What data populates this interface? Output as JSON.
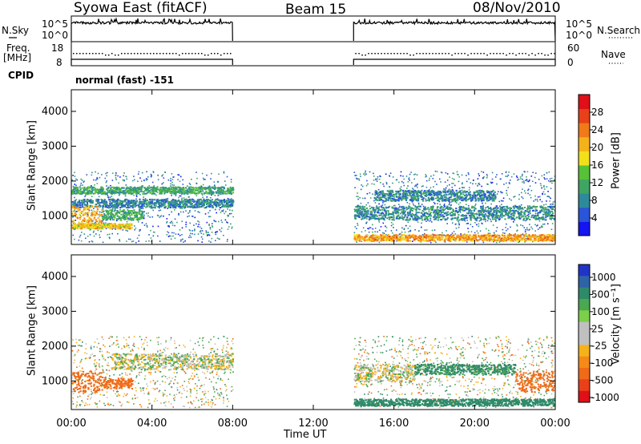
{
  "header": {
    "title": "Syowa East (fitACF)",
    "beam": "Beam 15",
    "date": "08/Nov/2010"
  },
  "strip_labels": {
    "nsky": "N.Sky",
    "freq_line1": "Freq.",
    "freq_line2": "[MHz]",
    "cpid": "CPID",
    "nsearch": "N.Search",
    "nave": "Nave",
    "cpid_value": "normal (fast) -151",
    "noise_ticks": [
      "10^5",
      "10^0"
    ],
    "freq_ticks": [
      "18",
      "8"
    ],
    "nave_ticks": [
      "60",
      "0"
    ]
  },
  "chart_data": [
    {
      "type": "heatmap",
      "title": "",
      "quantity": "Power [dB]",
      "xlabel": "Time UT",
      "ylabel": "Slant Range [km]",
      "xlim": [
        "00:00",
        "24:00"
      ],
      "ylim": [
        180,
        4620
      ],
      "x_ticks": [
        "00:00",
        "04:00",
        "08:00",
        "12:00",
        "16:00",
        "20:00",
        "00:00"
      ],
      "y_ticks": [
        1000,
        2000,
        3000,
        4000
      ],
      "colorbar": {
        "label": "Power [dB]",
        "range": [
          0,
          32
        ],
        "ticks": [
          4,
          8,
          12,
          16,
          20,
          24,
          28
        ],
        "colors": [
          "#1515f0",
          "#2a55d8",
          "#2d8a9a",
          "#3fa562",
          "#57c238",
          "#f2e11a",
          "#f5b21a",
          "#f07a18",
          "#e8411a",
          "#e01018"
        ]
      },
      "data_gap": {
        "start": "08:00",
        "end": "14:00"
      },
      "echo_bands": [
        {
          "t": [
            "00:00",
            "08:00"
          ],
          "range_km": [
            1650,
            1850
          ],
          "level_db": 11
        },
        {
          "t": [
            "00:00",
            "08:00"
          ],
          "range_km": [
            1250,
            1500
          ],
          "level_db": 8
        },
        {
          "t": [
            "00:00",
            "01:30"
          ],
          "range_km": [
            700,
            1300
          ],
          "level_db": 21
        },
        {
          "t": [
            "01:30",
            "03:30"
          ],
          "range_km": [
            900,
            1200
          ],
          "level_db": 12
        },
        {
          "t": [
            "00:00",
            "03:00"
          ],
          "range_km": [
            650,
            800
          ],
          "level_db": 19
        },
        {
          "t": [
            "14:00",
            "24:00"
          ],
          "range_km": [
            300,
            480
          ],
          "level_db": 22
        },
        {
          "t": [
            "14:00",
            "24:00"
          ],
          "range_km": [
            900,
            1300
          ],
          "level_db": 9
        },
        {
          "t": [
            "15:00",
            "21:00"
          ],
          "range_km": [
            1450,
            1750
          ],
          "level_db": 8
        }
      ]
    },
    {
      "type": "heatmap",
      "title": "",
      "quantity": "Velocity [m s-1]",
      "xlabel": "Time UT",
      "ylabel": "Slant Range [km]",
      "xlim": [
        "00:00",
        "24:00"
      ],
      "ylim": [
        180,
        4620
      ],
      "x_ticks": [
        "00:00",
        "04:00",
        "08:00",
        "12:00",
        "16:00",
        "20:00",
        "00:00"
      ],
      "y_ticks": [
        1000,
        2000,
        3000,
        4000
      ],
      "colorbar": {
        "label": "Velocity [m s⁻¹]",
        "ticks": [
          "1000",
          "500",
          "100",
          "25",
          "-25",
          "-100",
          "-500",
          "-1000"
        ],
        "colors": [
          "#2035c8",
          "#2f63a8",
          "#2f8a6a",
          "#4aa850",
          "#7ccf4a",
          "#c0c0c0",
          "#c0c0c0",
          "#f5b21a",
          "#f58a18",
          "#f06a18",
          "#e8411a",
          "#e01018"
        ]
      },
      "data_gap": {
        "start": "08:00",
        "end": "14:00"
      },
      "echo_bands": [
        {
          "t": [
            "00:00",
            "01:30"
          ],
          "range_km": [
            700,
            1300
          ],
          "vel": -400
        },
        {
          "t": [
            "01:30",
            "03:00"
          ],
          "range_km": [
            800,
            1100
          ],
          "vel": -300
        },
        {
          "t": [
            "02:00",
            "08:00"
          ],
          "range_km": [
            1350,
            1800
          ],
          "vel": 0
        },
        {
          "t": [
            "14:00",
            "24:00"
          ],
          "range_km": [
            300,
            500
          ],
          "vel": 250
        },
        {
          "t": [
            "14:00",
            "17:00"
          ],
          "range_km": [
            1000,
            1500
          ],
          "vel": 0
        },
        {
          "t": [
            "17:00",
            "22:00"
          ],
          "range_km": [
            1200,
            1500
          ],
          "vel": 150
        },
        {
          "t": [
            "22:00",
            "24:00"
          ],
          "range_km": [
            700,
            1300
          ],
          "vel": -400
        }
      ]
    }
  ]
}
